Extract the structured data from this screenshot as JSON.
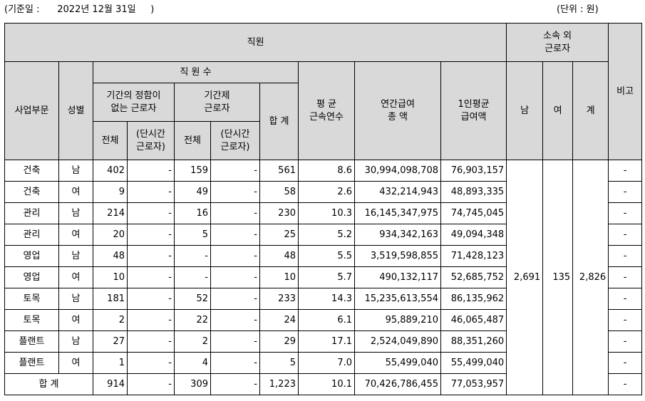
{
  "basis_date": "(기준일 :      2022년 12월 31일     )",
  "unit": "(단위 : 원)",
  "header": {
    "staff": "직원",
    "outsourced_l1": "소속 외",
    "outsourced_l2": "근로자",
    "remarks": "비고",
    "division": "사업부문",
    "gender": "성별",
    "staff_count": "직 원 수",
    "permanent_l1": "기간의 정함이",
    "permanent_l2": "없는 근로자",
    "fixed_term_l1": "기간제",
    "fixed_term_l2": "근로자",
    "total_count": "합 계",
    "avg_tenure_l1": "평 균",
    "avg_tenure_l2": "근속연수",
    "annual_pay_l1": "연간급여",
    "annual_pay_l2": "총 액",
    "per_capita_l1": "1인평균",
    "per_capita_l2": "급여액",
    "male": "남",
    "female": "여",
    "sum": "계",
    "all": "전체",
    "part_time_l1": "(단시간",
    "part_time_l2": "근로자)"
  },
  "rows": [
    {
      "division": "건축",
      "gender": "남",
      "perm_total": "402",
      "perm_part": "-",
      "fixed_total": "159",
      "fixed_part": "-",
      "total": "561",
      "tenure": "8.6",
      "annual_pay": "30,994,098,708",
      "per_capita": "76,903,157",
      "remarks": "-"
    },
    {
      "division": "건축",
      "gender": "여",
      "perm_total": "9",
      "perm_part": "-",
      "fixed_total": "49",
      "fixed_part": "-",
      "total": "58",
      "tenure": "2.6",
      "annual_pay": "432,214,943",
      "per_capita": "48,893,335",
      "remarks": "-"
    },
    {
      "division": "관리",
      "gender": "남",
      "perm_total": "214",
      "perm_part": "-",
      "fixed_total": "16",
      "fixed_part": "-",
      "total": "230",
      "tenure": "10.3",
      "annual_pay": "16,145,347,975",
      "per_capita": "74,745,045",
      "remarks": "-"
    },
    {
      "division": "관리",
      "gender": "여",
      "perm_total": "20",
      "perm_part": "-",
      "fixed_total": "5",
      "fixed_part": "-",
      "total": "25",
      "tenure": "5.2",
      "annual_pay": "934,342,163",
      "per_capita": "49,094,348",
      "remarks": "-"
    },
    {
      "division": "영업",
      "gender": "남",
      "perm_total": "48",
      "perm_part": "-",
      "fixed_total": "-",
      "fixed_part": "-",
      "total": "48",
      "tenure": "5.5",
      "annual_pay": "3,519,598,855",
      "per_capita": "71,428,123",
      "remarks": "-"
    },
    {
      "division": "영업",
      "gender": "여",
      "perm_total": "10",
      "perm_part": "-",
      "fixed_total": "-",
      "fixed_part": "-",
      "total": "10",
      "tenure": "5.7",
      "annual_pay": "490,132,117",
      "per_capita": "52,685,752",
      "remarks": "-"
    },
    {
      "division": "토목",
      "gender": "남",
      "perm_total": "181",
      "perm_part": "-",
      "fixed_total": "52",
      "fixed_part": "-",
      "total": "233",
      "tenure": "14.3",
      "annual_pay": "15,235,613,554",
      "per_capita": "86,135,962",
      "remarks": "-"
    },
    {
      "division": "토목",
      "gender": "여",
      "perm_total": "2",
      "perm_part": "-",
      "fixed_total": "22",
      "fixed_part": "-",
      "total": "24",
      "tenure": "6.1",
      "annual_pay": "95,889,210",
      "per_capita": "46,065,487",
      "remarks": "-"
    },
    {
      "division": "플랜트",
      "gender": "남",
      "perm_total": "27",
      "perm_part": "-",
      "fixed_total": "2",
      "fixed_part": "-",
      "total": "29",
      "tenure": "17.1",
      "annual_pay": "2,524,049,890",
      "per_capita": "88,351,260",
      "remarks": "-"
    },
    {
      "division": "플랜트",
      "gender": "여",
      "perm_total": "1",
      "perm_part": "-",
      "fixed_total": "4",
      "fixed_part": "-",
      "total": "5",
      "tenure": "7.0",
      "annual_pay": "55,499,040",
      "per_capita": "55,499,040",
      "remarks": "-"
    }
  ],
  "outsourced": {
    "male": "2,691",
    "female": "135",
    "total": "2,826"
  },
  "totals": {
    "label": "합 계",
    "perm_total": "914",
    "perm_part": "-",
    "fixed_total": "309",
    "fixed_part": "-",
    "total": "1,223",
    "tenure": "10.1",
    "annual_pay": "70,426,786,455",
    "per_capita": "77,053,957",
    "remarks": "-"
  }
}
